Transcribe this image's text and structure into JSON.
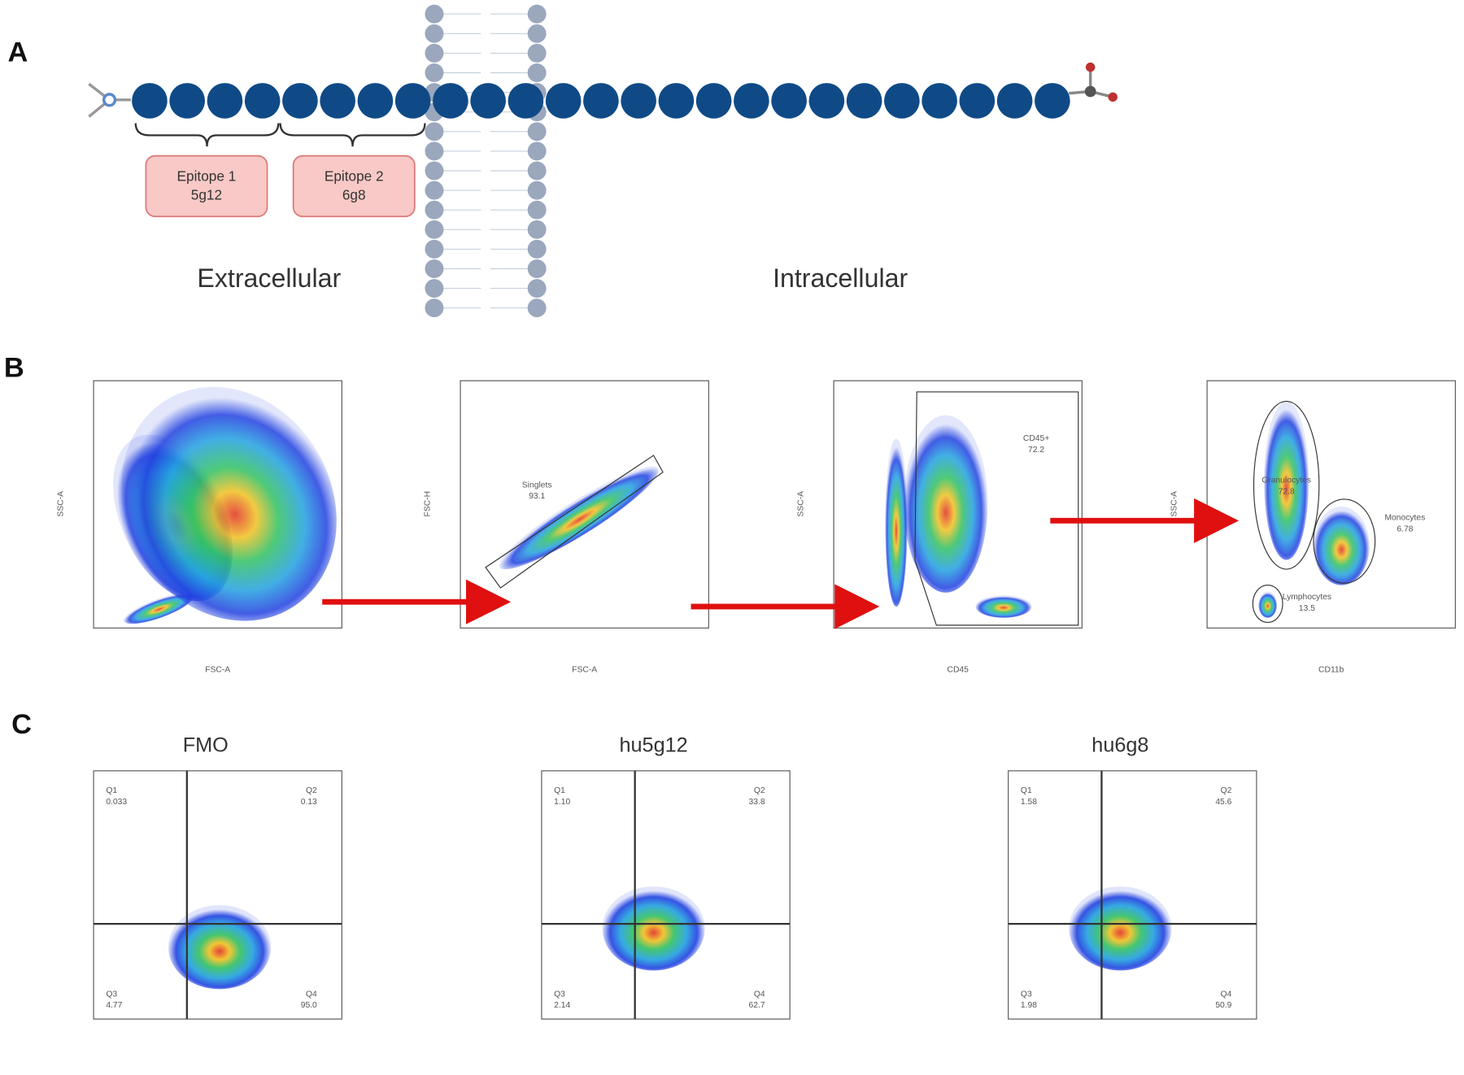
{
  "panel_a": {
    "label": "A",
    "epitopes": [
      {
        "name": "Epitope 1",
        "antibody": "5g12"
      },
      {
        "name": "Epitope 2",
        "antibody": "6g8"
      }
    ],
    "regions": [
      "Extracellular",
      "Intracellular"
    ]
  },
  "panel_b": {
    "label": "B",
    "plots": [
      {
        "x_label": "FSC-A",
        "y_label": "SSC-A",
        "gates": []
      },
      {
        "x_label": "FSC-A",
        "y_label": "FSC-H",
        "gates": [
          {
            "name": "Singlets",
            "value": "93.1"
          }
        ]
      },
      {
        "x_label": "CD45",
        "y_label": "SSC-A",
        "gates": [
          {
            "name": "CD45+",
            "value": "72.2"
          }
        ]
      },
      {
        "x_label": "CD11b",
        "y_label": "SSC-A",
        "gates": [
          {
            "name": "Granulocytes",
            "value": "72.8"
          },
          {
            "name": "Monocytes",
            "value": "6.78"
          },
          {
            "name": "Lymphocytes",
            "value": "13.5"
          }
        ]
      }
    ]
  },
  "panel_c": {
    "label": "C",
    "plots": [
      {
        "title": "FMO",
        "quadrants": [
          {
            "name": "Q1",
            "value": "0.033"
          },
          {
            "name": "Q2",
            "value": "0.13"
          },
          {
            "name": "Q3",
            "value": "4.77"
          },
          {
            "name": "Q4",
            "value": "95.0"
          }
        ]
      },
      {
        "title": "hu5g12",
        "quadrants": [
          {
            "name": "Q1",
            "value": "1.10"
          },
          {
            "name": "Q2",
            "value": "33.8"
          },
          {
            "name": "Q3",
            "value": "2.14"
          },
          {
            "name": "Q4",
            "value": "62.7"
          }
        ]
      },
      {
        "title": "hu6g8",
        "quadrants": [
          {
            "name": "Q1",
            "value": "1.58"
          },
          {
            "name": "Q2",
            "value": "45.6"
          },
          {
            "name": "Q3",
            "value": "1.98"
          },
          {
            "name": "Q4",
            "value": "50.9"
          }
        ]
      }
    ]
  }
}
